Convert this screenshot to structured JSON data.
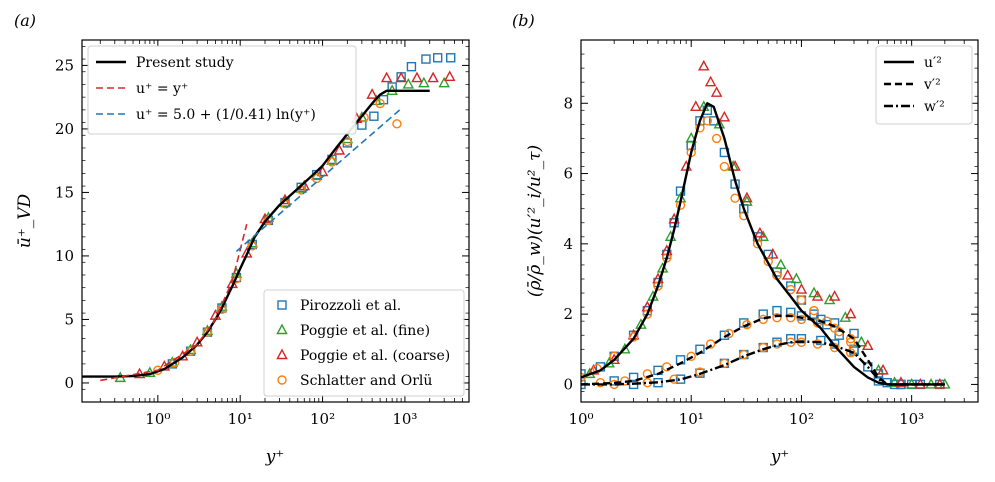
{
  "chart_data": [
    {
      "type": "line",
      "panel": "(a)",
      "xlabel": "y⁺",
      "ylabel": "ū⁺_VD",
      "xscale": "log",
      "xlim": [
        0.12,
        6000
      ],
      "ylim": [
        -1.5,
        27
      ],
      "xticks": [
        {
          "value": 1,
          "label": "10⁰"
        },
        {
          "value": 10,
          "label": "10¹"
        },
        {
          "value": 100,
          "label": "10²"
        },
        {
          "value": 1000,
          "label": "10³"
        }
      ],
      "yticks": [
        0,
        5,
        10,
        15,
        20,
        25
      ],
      "lines": [
        {
          "name": "Present study",
          "label": "Present study",
          "color": "#000000",
          "style": "solid",
          "x": [
            0.12,
            0.3,
            0.5,
            0.8,
            1.2,
            2,
            3,
            4,
            5,
            6,
            8,
            10,
            12,
            15,
            20,
            30,
            50,
            80,
            100,
            150,
            200,
            300,
            400,
            500,
            600,
            1000,
            2000
          ],
          "y": [
            0.5,
            0.5,
            0.55,
            0.7,
            1.1,
            2.0,
            3.0,
            4.0,
            5.0,
            5.9,
            7.6,
            9.0,
            10.1,
            11.5,
            12.7,
            14.0,
            15.3,
            16.5,
            17.1,
            18.6,
            19.6,
            21.0,
            22.0,
            22.7,
            23.0,
            23.0,
            23.0
          ]
        },
        {
          "name": "u+ = y+",
          "label": "u⁺ = y⁺",
          "color": "#d62728",
          "style": "dashed",
          "x": [
            0.2,
            1,
            3,
            5,
            8,
            12
          ],
          "y": [
            0.2,
            1,
            3,
            5,
            8,
            12.5
          ]
        },
        {
          "name": "log law",
          "label": "u⁺ = 5.0 + (1/0.41) ln(y⁺)",
          "color": "#1f77b4",
          "style": "dashed",
          "x": [
            9,
            30,
            100,
            300,
            900
          ],
          "y": [
            10.36,
            13.3,
            16.23,
            18.91,
            21.59
          ]
        }
      ],
      "series": [
        {
          "name": "Pirozzoli et al.",
          "marker": "square",
          "color": "#1f77b4",
          "x": [
            1.5,
            2.5,
            4,
            6,
            9,
            14,
            22,
            35,
            55,
            85,
            130,
            200,
            300,
            420,
            550,
            700,
            900,
            1200,
            1800,
            2500,
            3600
          ],
          "y": [
            1.5,
            2.5,
            4.0,
            5.9,
            8.3,
            10.9,
            12.8,
            14.2,
            15.4,
            16.4,
            17.6,
            18.9,
            20.3,
            21.0,
            22.3,
            23.3,
            24.1,
            24.9,
            25.5,
            25.6,
            25.6
          ]
        },
        {
          "name": "Poggie et al. (fine)",
          "marker": "triangle",
          "color": "#2ca02c",
          "x": [
            0.35,
            0.8,
            1.5,
            2.5,
            4,
            6,
            9,
            14,
            22,
            35,
            55,
            85,
            130,
            200,
            300,
            450,
            700,
            1100,
            1700,
            3000
          ],
          "y": [
            0.4,
            0.8,
            1.6,
            2.6,
            4.1,
            6.0,
            8.6,
            11.0,
            13.0,
            14.2,
            15.3,
            16.3,
            17.5,
            19.2,
            20.9,
            22.2,
            23.0,
            23.5,
            23.6,
            23.6
          ]
        },
        {
          "name": "Poggie et al. (coarse)",
          "marker": "triangle",
          "color": "#d62728",
          "x": [
            0.6,
            1.2,
            2,
            3,
            5,
            8,
            12,
            20,
            35,
            60,
            100,
            160,
            260,
            400,
            600,
            900,
            1400,
            2200,
            3500
          ],
          "y": [
            0.7,
            1.3,
            2.1,
            3.2,
            5.3,
            7.8,
            10.2,
            12.9,
            14.4,
            15.5,
            16.6,
            18.3,
            20.8,
            22.7,
            24.0,
            24.0,
            24.0,
            24.0,
            24.1
          ]
        },
        {
          "name": "Schlatter and Orlü",
          "marker": "circle",
          "color": "#ff7f0e",
          "x": [
            1,
            1.6,
            2.5,
            4,
            6,
            9,
            14,
            22,
            35,
            55,
            85,
            130,
            200,
            320,
            500,
            800
          ],
          "y": [
            1.0,
            1.6,
            2.5,
            4.0,
            5.8,
            8.2,
            10.8,
            12.8,
            14.1,
            15.2,
            16.1,
            17.4,
            19.0,
            20.9,
            22.0,
            20.4
          ]
        }
      ],
      "legend_top": "top-left",
      "legend_bottom": "bottom-right"
    },
    {
      "type": "line",
      "panel": "(b)",
      "xlabel": "y⁺",
      "ylabel": "(ρ̄/ρ̄_w)(u′²_i/u²_τ)",
      "xscale": "log",
      "xlim": [
        1,
        4000
      ],
      "ylim": [
        -0.5,
        9.8
      ],
      "xticks": [
        {
          "value": 1,
          "label": "10⁰"
        },
        {
          "value": 10,
          "label": "10¹"
        },
        {
          "value": 100,
          "label": "10²"
        },
        {
          "value": 1000,
          "label": "10³"
        }
      ],
      "yticks": [
        0,
        2,
        4,
        6,
        8
      ],
      "lines": [
        {
          "name": "u'2",
          "label": "u′²",
          "color": "#000000",
          "style": "solid",
          "x": [
            1,
            1.5,
            2,
            3,
            4,
            5,
            6,
            7,
            8,
            10,
            12,
            14,
            16,
            20,
            25,
            30,
            40,
            60,
            80,
            100,
            150,
            200,
            300,
            400,
            500,
            600,
            800,
            1000,
            2000
          ],
          "y": [
            0.2,
            0.4,
            0.7,
            1.3,
            2.0,
            2.8,
            3.6,
            4.4,
            5.2,
            6.6,
            7.5,
            8.0,
            7.9,
            7.0,
            5.8,
            5.0,
            4.0,
            3.0,
            2.5,
            2.1,
            1.6,
            1.1,
            0.5,
            0.2,
            0.05,
            0.0,
            0.0,
            0.0,
            0.0
          ]
        },
        {
          "name": "v'2",
          "label": "v′²",
          "color": "#000000",
          "style": "dashed",
          "x": [
            1,
            2,
            3,
            5,
            8,
            12,
            20,
            30,
            45,
            60,
            80,
            100,
            150,
            200,
            300,
            400,
            500,
            600,
            1000,
            2000
          ],
          "y": [
            0.0,
            0.04,
            0.1,
            0.3,
            0.6,
            0.9,
            1.35,
            1.65,
            1.88,
            1.95,
            1.95,
            1.9,
            1.8,
            1.65,
            1.3,
            0.7,
            0.2,
            0.0,
            0.0,
            0.0
          ]
        },
        {
          "name": "w'2",
          "label": "w′²",
          "color": "#000000",
          "style": "dashdot",
          "x": [
            1,
            2,
            3,
            5,
            8,
            12,
            20,
            30,
            45,
            60,
            80,
            100,
            150,
            200,
            300,
            400,
            500,
            600,
            1000,
            2000
          ],
          "y": [
            0.0,
            0.0,
            0.02,
            0.06,
            0.14,
            0.3,
            0.55,
            0.8,
            1.0,
            1.12,
            1.2,
            1.22,
            1.2,
            1.1,
            0.9,
            0.5,
            0.15,
            0.0,
            0.0,
            0.0
          ]
        }
      ],
      "series": [
        {
          "name": "Pirozzoli et al.",
          "marker": "square",
          "color": "#1f77b4",
          "x": [
            1,
            1.5,
            2,
            3,
            4,
            5,
            6,
            7,
            8,
            10,
            12,
            14,
            16,
            20,
            25,
            30,
            40,
            50,
            60,
            80,
            100,
            130,
            170,
            220,
            300,
            400,
            600,
            800,
            1200,
            1800,
            1,
            2,
            3,
            5,
            8,
            12,
            20,
            30,
            45,
            60,
            80,
            100,
            150,
            200,
            300,
            500,
            700,
            1000,
            3,
            5,
            8,
            12,
            20,
            30,
            45,
            60,
            80,
            100,
            150,
            200,
            300,
            500,
            800
          ],
          "y": [
            0.3,
            0.5,
            0.8,
            1.4,
            2.1,
            2.9,
            3.7,
            4.6,
            5.5,
            6.8,
            7.5,
            7.8,
            7.5,
            6.6,
            5.7,
            5.0,
            4.2,
            3.7,
            3.2,
            2.8,
            2.4,
            2.0,
            1.7,
            1.4,
            1.0,
            0.5,
            0.05,
            0.0,
            0.0,
            0.0,
            0.0,
            0.1,
            0.2,
            0.4,
            0.7,
            1.0,
            1.4,
            1.75,
            2.0,
            2.1,
            2.05,
            1.95,
            1.85,
            1.75,
            1.45,
            0.3,
            0.0,
            0.0,
            0.0,
            0.05,
            0.15,
            0.32,
            0.6,
            0.85,
            1.05,
            1.2,
            1.3,
            1.3,
            1.25,
            1.15,
            0.95,
            0.1,
            0.0
          ]
        },
        {
          "name": "Poggie et al. (fine)",
          "marker": "triangle",
          "color": "#2ca02c",
          "x": [
            1.2,
            1.8,
            2.5,
            3.5,
            4.5,
            5.5,
            6.5,
            8,
            10,
            13,
            18,
            24,
            32,
            45,
            65,
            90,
            130,
            180,
            250,
            350,
            500,
            700,
            1000,
            1500,
            2000
          ],
          "y": [
            0.3,
            0.6,
            1.0,
            1.7,
            2.5,
            3.3,
            4.2,
            5.3,
            7.0,
            7.9,
            7.4,
            6.2,
            5.2,
            4.2,
            3.4,
            3.0,
            2.6,
            2.4,
            1.9,
            1.2,
            0.4,
            0.05,
            0.0,
            0.0,
            0.0
          ]
        },
        {
          "name": "Poggie et al. (coarse)",
          "marker": "triangle",
          "color": "#d62728",
          "x": [
            1.3,
            2,
            3,
            4,
            5,
            6,
            7,
            9,
            11,
            13,
            15,
            17,
            20,
            25,
            32,
            42,
            55,
            75,
            100,
            140,
            200,
            280,
            400,
            550,
            800,
            1200,
            1800
          ],
          "y": [
            0.4,
            0.7,
            1.4,
            2.2,
            3.0,
            3.8,
            4.7,
            6.2,
            7.9,
            9.05,
            8.6,
            8.3,
            7.6,
            6.2,
            5.3,
            4.3,
            3.7,
            3.1,
            2.7,
            2.5,
            2.5,
            2.0,
            1.1,
            0.4,
            0.05,
            0.0,
            0.0
          ]
        },
        {
          "name": "Schlatter and Orlü",
          "marker": "circle",
          "color": "#ff7f0e",
          "x": [
            1,
            1.4,
            2,
            3,
            4,
            5,
            6,
            8,
            10,
            12,
            14,
            17,
            20,
            25,
            30,
            40,
            50,
            60,
            80,
            100,
            130,
            170,
            220,
            280,
            1.5,
            2.5,
            4,
            6,
            10,
            15,
            22,
            32,
            45,
            60,
            80,
            100,
            140,
            200,
            280,
            2,
            4,
            7,
            12,
            20,
            30,
            45,
            60,
            80,
            100,
            140,
            200,
            280
          ],
          "y": [
            0.2,
            0.45,
            0.8,
            1.35,
            2.0,
            2.8,
            3.6,
            5.1,
            6.6,
            7.3,
            7.5,
            7.0,
            6.2,
            5.3,
            4.8,
            4.0,
            3.5,
            3.1,
            2.7,
            2.4,
            2.1,
            1.8,
            1.5,
            1.2,
            0.05,
            0.1,
            0.3,
            0.5,
            0.8,
            1.15,
            1.45,
            1.7,
            1.85,
            1.9,
            1.9,
            1.85,
            1.75,
            1.6,
            1.3,
            0.0,
            0.05,
            0.15,
            0.35,
            0.6,
            0.85,
            1.05,
            1.15,
            1.2,
            1.2,
            1.15,
            1.05,
            0.9
          ]
        }
      ],
      "legend": "top-right"
    }
  ]
}
